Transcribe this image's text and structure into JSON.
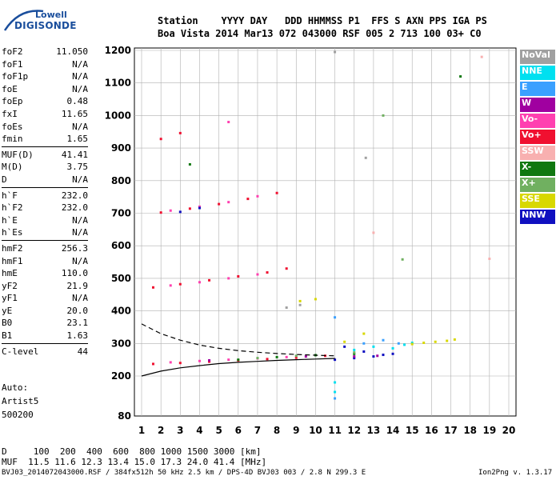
{
  "logo": {
    "line1": "Lowell",
    "line2": "DIGISONDE"
  },
  "header": {
    "line1": "Station    YYYY DAY   DDD HHMMSS P1  FFS S AXN PPS IGA PS",
    "line2": "Boa Vista 2014 Mar13 072 043000 RSF 005 2 713 100 03+ C0"
  },
  "params": [
    {
      "k": "foF2",
      "v": "11.050"
    },
    {
      "k": "foF1",
      "v": "N/A"
    },
    {
      "k": "foF1p",
      "v": "N/A"
    },
    {
      "k": "foE",
      "v": "N/A"
    },
    {
      "k": "foEp",
      "v": "0.48"
    },
    {
      "k": "fxI",
      "v": "11.65"
    },
    {
      "k": "foEs",
      "v": "N/A"
    },
    {
      "k": "fmin",
      "v": "1.65"
    },
    {
      "k": "MUF(D)",
      "v": "41.41"
    },
    {
      "k": "M(D)",
      "v": "3.75"
    },
    {
      "k": "D",
      "v": "N/A"
    },
    {
      "k": "h`F",
      "v": "232.0"
    },
    {
      "k": "h`F2",
      "v": "232.0"
    },
    {
      "k": "h`E",
      "v": "N/A"
    },
    {
      "k": "h`Es",
      "v": "N/A"
    },
    {
      "k": "hmF2",
      "v": "256.3"
    },
    {
      "k": "hmF1",
      "v": "N/A"
    },
    {
      "k": "hmE",
      "v": "110.0"
    },
    {
      "k": "yF2",
      "v": "21.9"
    },
    {
      "k": "yF1",
      "v": "N/A"
    },
    {
      "k": "yE",
      "v": "20.0"
    },
    {
      "k": "B0",
      "v": "23.1"
    },
    {
      "k": "B1",
      "v": "1.63"
    },
    {
      "k": "C-level",
      "v": "44"
    }
  ],
  "auto": {
    "line1": "Auto:",
    "line2": "Artist5",
    "line3": "500200"
  },
  "muf_table": {
    "row1": "D     100  200  400  600  800 1000 1500 3000 [km]",
    "row2": "MUF  11.5 11.6 12.3 13.4 15.0 17.3 24.0 41.4 [MHz]"
  },
  "footer": {
    "left": "BVJ03_2014072043000.RSF / 384fx512h 50 kHz 2.5 km / DPS-4D BVJ03 003 / 2.8 N 299.3 E",
    "right": "Ion2Png v. 1.3.17"
  },
  "legend": [
    {
      "label": "NoVal",
      "color": "#a0a0a0"
    },
    {
      "label": "NNE",
      "color": "#00e0f0"
    },
    {
      "label": "E",
      "color": "#3aa0ff"
    },
    {
      "label": "W",
      "color": "#a000a0"
    },
    {
      "label": "Vo-",
      "color": "#ff40b0"
    },
    {
      "label": "Vo+",
      "color": "#f01030"
    },
    {
      "label": "SSW",
      "color": "#f8b0b0"
    },
    {
      "label": "X-",
      "color": "#107810"
    },
    {
      "label": "X+",
      "color": "#70b060"
    },
    {
      "label": "SSE",
      "color": "#d8d800"
    },
    {
      "label": "NNW",
      "color": "#1010c0"
    }
  ],
  "chart_data": {
    "type": "scatter",
    "title": "",
    "xlabel": "",
    "ylabel": "",
    "xlim": [
      1,
      20
    ],
    "ylim": [
      80,
      1200
    ],
    "x_ticks": [
      1,
      2,
      3,
      4,
      5,
      6,
      7,
      8,
      9,
      10,
      11,
      12,
      13,
      14,
      15,
      16,
      17,
      18,
      19,
      20
    ],
    "y_ticks": [
      200,
      300,
      400,
      500,
      600,
      700,
      800,
      900,
      1000,
      1100,
      1200
    ],
    "y_tick_labels": [
      "200",
      "300",
      "400",
      "500",
      "600",
      "700",
      "800",
      "900",
      "1000",
      "1100",
      "1200"
    ],
    "y_bottom_label": "80",
    "grid": true,
    "legend_position": "right",
    "series": [
      {
        "color": "#f01030",
        "points": [
          [
            1.6,
            237
          ],
          [
            3,
            240
          ],
          [
            4.5,
            244
          ],
          [
            6,
            248
          ],
          [
            7.5,
            252
          ],
          [
            9,
            256
          ],
          [
            10.5,
            262
          ],
          [
            1.6,
            472
          ],
          [
            3,
            482
          ],
          [
            4.5,
            494
          ],
          [
            6,
            506
          ],
          [
            7.5,
            518
          ],
          [
            8.5,
            530
          ],
          [
            2,
            702
          ],
          [
            3.5,
            714
          ],
          [
            5,
            728
          ],
          [
            6.5,
            744
          ],
          [
            8,
            762
          ],
          [
            2,
            928
          ],
          [
            3,
            946
          ]
        ]
      },
      {
        "color": "#ff40b0",
        "points": [
          [
            2.5,
            242
          ],
          [
            4,
            246
          ],
          [
            5.5,
            250
          ],
          [
            7,
            254
          ],
          [
            8.5,
            258
          ],
          [
            2.5,
            478
          ],
          [
            4,
            488
          ],
          [
            5.5,
            500
          ],
          [
            7,
            512
          ],
          [
            2.5,
            708
          ],
          [
            4,
            720
          ],
          [
            5.5,
            734
          ],
          [
            7,
            752
          ],
          [
            5.5,
            980
          ]
        ]
      },
      {
        "color": "#1010c0",
        "points": [
          [
            11,
            250
          ],
          [
            12,
            255
          ],
          [
            13,
            260
          ],
          [
            14,
            268
          ],
          [
            11.5,
            290
          ],
          [
            12.5,
            275
          ],
          [
            13.5,
            265
          ],
          [
            3,
            704
          ],
          [
            4,
            716
          ]
        ]
      },
      {
        "color": "#00e0f0",
        "points": [
          [
            12,
            280
          ],
          [
            13,
            290
          ],
          [
            14,
            285
          ],
          [
            14.6,
            296
          ],
          [
            15,
            302
          ],
          [
            11,
            180
          ],
          [
            11,
            150
          ]
        ]
      },
      {
        "color": "#3aa0ff",
        "points": [
          [
            12.5,
            300
          ],
          [
            13.5,
            310
          ],
          [
            14.3,
            300
          ],
          [
            11,
            380
          ],
          [
            11,
            130
          ]
        ]
      },
      {
        "color": "#d8d800",
        "points": [
          [
            15,
            298
          ],
          [
            15.6,
            302
          ],
          [
            16.2,
            305
          ],
          [
            16.8,
            308
          ],
          [
            17.2,
            312
          ],
          [
            9.2,
            430
          ],
          [
            10,
            436
          ],
          [
            11.5,
            305
          ],
          [
            12.5,
            330
          ]
        ]
      },
      {
        "color": "#a0a0a0",
        "points": [
          [
            8.5,
            410
          ],
          [
            9.2,
            418
          ],
          [
            11,
            1195
          ],
          [
            12.6,
            870
          ]
        ]
      },
      {
        "color": "#107810",
        "points": [
          [
            6,
            250
          ],
          [
            8,
            258
          ],
          [
            10,
            264
          ],
          [
            12,
            268
          ],
          [
            3.5,
            850
          ],
          [
            17.5,
            1120
          ]
        ]
      },
      {
        "color": "#70b060",
        "points": [
          [
            7,
            255
          ],
          [
            9,
            262
          ],
          [
            12,
            272
          ],
          [
            14.5,
            558
          ],
          [
            13.5,
            1000
          ]
        ]
      },
      {
        "color": "#a000a0",
        "points": [
          [
            4.5,
            248
          ],
          [
            9.5,
            260
          ],
          [
            12,
            260
          ],
          [
            13.2,
            262
          ]
        ]
      },
      {
        "color": "#f8b0b0",
        "points": [
          [
            19,
            560
          ],
          [
            13,
            640
          ],
          [
            18.6,
            1180
          ]
        ]
      }
    ],
    "lines": [
      {
        "style": "dashed",
        "points": [
          [
            1,
            360
          ],
          [
            2,
            330
          ],
          [
            3,
            310
          ],
          [
            4,
            295
          ],
          [
            5,
            285
          ],
          [
            6,
            278
          ],
          [
            7,
            273
          ],
          [
            8,
            269
          ],
          [
            9,
            266
          ],
          [
            10,
            264
          ],
          [
            11,
            262
          ]
        ]
      },
      {
        "style": "solid",
        "points": [
          [
            1,
            200
          ],
          [
            2,
            215
          ],
          [
            3,
            225
          ],
          [
            4,
            232
          ],
          [
            5,
            238
          ],
          [
            6,
            242
          ],
          [
            7,
            245
          ],
          [
            8,
            248
          ],
          [
            9,
            250
          ],
          [
            10,
            252
          ],
          [
            11,
            254
          ]
        ]
      }
    ]
  }
}
